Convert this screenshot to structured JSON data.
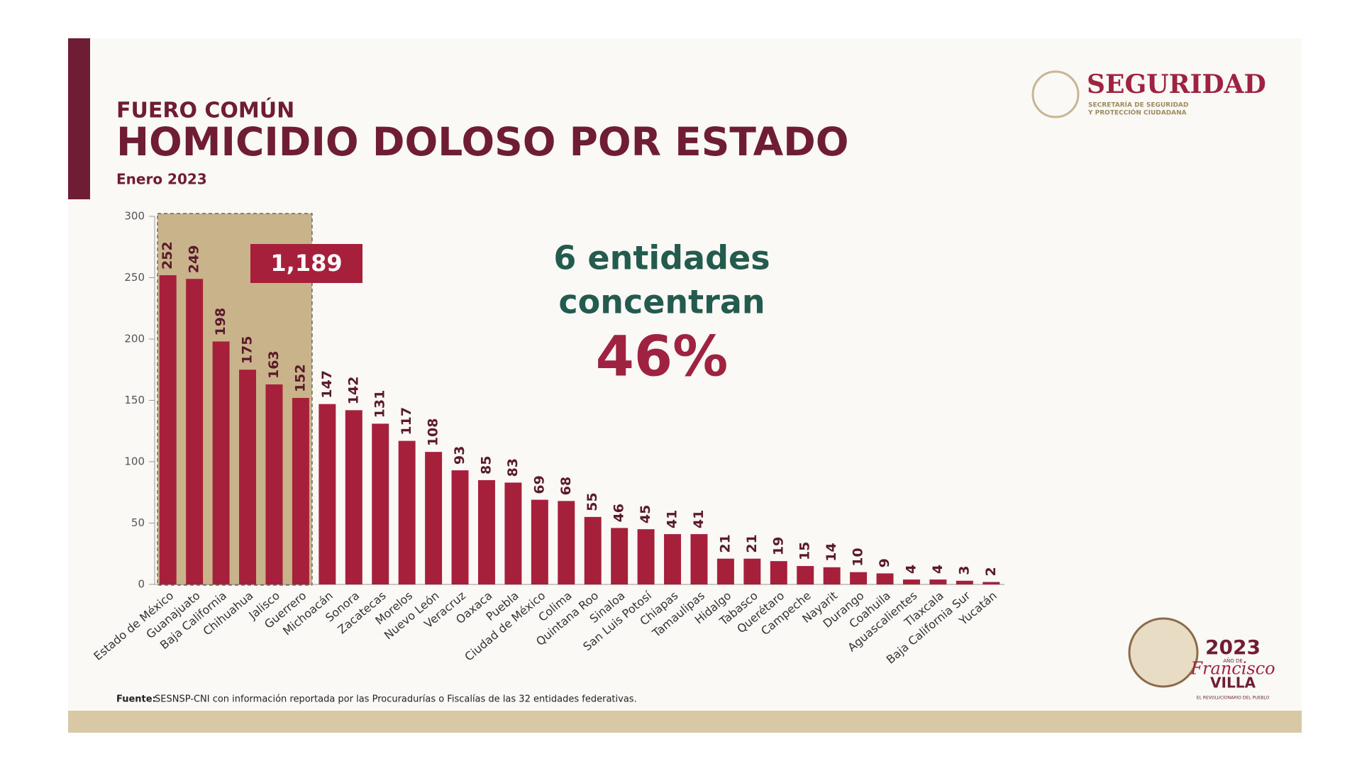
{
  "header": {
    "kicker": "FUERO COMÚN",
    "title": "HOMICIDIO DOLOSO POR ESTADO",
    "subtitle": "Enero 2023"
  },
  "logo": {
    "name": "SEGURIDAD",
    "line1": "SECRETARÍA DE SEGURIDAD",
    "line2": "Y PROTECCIÓN CIUDADANA"
  },
  "callout": {
    "total": "1,189",
    "line1": "6 entidades",
    "line2": "concentran",
    "share": "46%"
  },
  "source": {
    "label": "Fuente:",
    "text": "SESNSP-CNI con información reportada por las Procuradurías o Fiscalías de las 32 entidades federativas."
  },
  "year_logo": {
    "year": "2023",
    "small": "AÑO DE",
    "name1": "Francisco",
    "name2": "VILLA",
    "motto": "EL REVOLUCIONARIO DEL PUEBLO"
  },
  "chart_data": {
    "type": "bar",
    "categories": [
      "Estado de México",
      "Guanajuato",
      "Baja California",
      "Chihuahua",
      "Jalisco",
      "Guerrero",
      "Michoacán",
      "Sonora",
      "Zacatecas",
      "Morelos",
      "Nuevo León",
      "Veracruz",
      "Oaxaca",
      "Puebla",
      "Ciudad de México",
      "Colima",
      "Quintana Roo",
      "Sinaloa",
      "San Luis Potosí",
      "Chiapas",
      "Tamaulipas",
      "Hidalgo",
      "Tabasco",
      "Querétaro",
      "Campeche",
      "Nayarit",
      "Durango",
      "Coahuila",
      "Aguascalientes",
      "Tlaxcala",
      "Baja California Sur",
      "Yucatán"
    ],
    "values": [
      252,
      249,
      198,
      175,
      163,
      152,
      147,
      142,
      131,
      117,
      108,
      93,
      85,
      83,
      69,
      68,
      55,
      46,
      45,
      41,
      41,
      21,
      21,
      19,
      15,
      14,
      10,
      9,
      4,
      4,
      3,
      2
    ],
    "color": "#a6203c",
    "ylim": [
      0,
      300
    ],
    "yticks": [
      0,
      50,
      100,
      150,
      200,
      250,
      300
    ],
    "highlight_count": 6
  }
}
